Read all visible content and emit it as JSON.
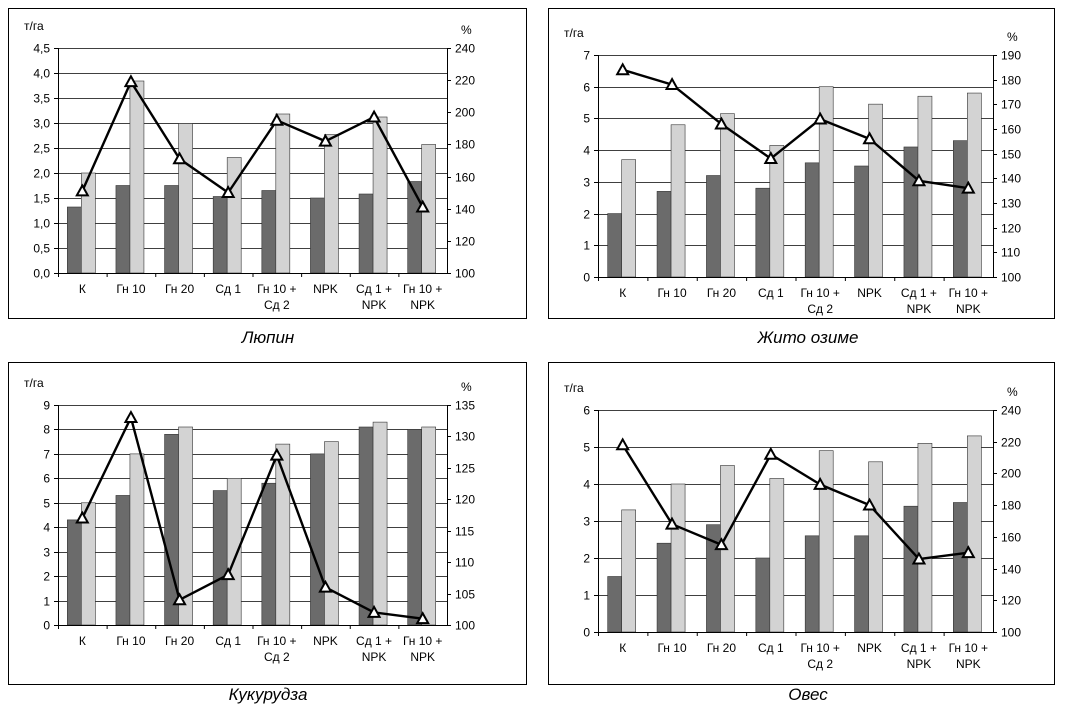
{
  "colors": {
    "bar_dark": "#6b6b6b",
    "bar_light": "#d3d3d3",
    "line": "#000000",
    "marker_fill": "#ffffff",
    "frame": "#000000",
    "grid": "#000000"
  },
  "chart_data": [
    {
      "type": "bar",
      "caption": "Люпин",
      "y_unit_left": "т/га",
      "y_unit_right": "%",
      "categories": [
        [
          "К"
        ],
        [
          "Гн 10"
        ],
        [
          "Гн 20"
        ],
        [
          "Сд 1"
        ],
        [
          "Гн 10 +",
          "Сд 2"
        ],
        [
          "NPK"
        ],
        [
          "Сд 1 +",
          "NPK"
        ],
        [
          "Гн 10 +",
          "NPK"
        ]
      ],
      "ylim": [
        0,
        4.5
      ],
      "ystep": 0.5,
      "ydecimals": 1,
      "y2lim": [
        100,
        240
      ],
      "y2step": 20,
      "grid": true,
      "legend": "none",
      "series": [
        {
          "kind": "bar",
          "axis": "left",
          "values": [
            1.32,
            1.75,
            1.75,
            1.53,
            1.65,
            1.5,
            1.58,
            1.83
          ]
        },
        {
          "kind": "bar",
          "axis": "left",
          "values": [
            2.0,
            3.84,
            2.99,
            2.31,
            3.18,
            2.77,
            3.12,
            2.57
          ]
        },
        {
          "kind": "line",
          "axis": "right",
          "values": [
            151,
            219,
            171,
            150,
            195,
            182,
            197,
            141
          ]
        }
      ]
    },
    {
      "type": "bar",
      "caption": "Жито озиме",
      "y_unit_left": "т/га",
      "y_unit_right": "%",
      "categories": [
        [
          "К"
        ],
        [
          "Гн 10"
        ],
        [
          "Гн 20"
        ],
        [
          "Сд 1"
        ],
        [
          "Гн 10 +",
          "Сд 2"
        ],
        [
          "NPK"
        ],
        [
          "Сд 1 +",
          "NPK"
        ],
        [
          "Гн 10 +",
          "NPK"
        ]
      ],
      "ylim": [
        0,
        7
      ],
      "ystep": 1,
      "ydecimals": 0,
      "y2lim": [
        100,
        190
      ],
      "y2step": 10,
      "grid": true,
      "legend": "none",
      "series": [
        {
          "kind": "bar",
          "axis": "left",
          "values": [
            2.0,
            2.7,
            3.2,
            2.8,
            3.6,
            3.5,
            4.1,
            4.3
          ]
        },
        {
          "kind": "bar",
          "axis": "left",
          "values": [
            3.7,
            4.8,
            5.15,
            4.15,
            6.0,
            5.45,
            5.7,
            5.8
          ]
        },
        {
          "kind": "line",
          "axis": "right",
          "values": [
            184,
            178,
            162,
            148,
            164,
            156,
            139,
            136
          ]
        }
      ]
    },
    {
      "type": "bar",
      "caption": "Кукурудза",
      "y_unit_left": "т/га",
      "y_unit_right": "%",
      "categories": [
        [
          "К"
        ],
        [
          "Гн 10"
        ],
        [
          "Гн 20"
        ],
        [
          "Сд 1"
        ],
        [
          "Гн 10 +",
          "Сд 2"
        ],
        [
          "NPK"
        ],
        [
          "Сд 1 +",
          "NPK"
        ],
        [
          "Гн 10 +",
          "NPK"
        ]
      ],
      "ylim": [
        0,
        9
      ],
      "ystep": 1,
      "ydecimals": 0,
      "y2lim": [
        100,
        135
      ],
      "y2step": 5,
      "grid": true,
      "legend": "none",
      "series": [
        {
          "kind": "bar",
          "axis": "left",
          "values": [
            4.3,
            5.3,
            7.8,
            5.5,
            5.8,
            7.0,
            8.1,
            8.0
          ]
        },
        {
          "kind": "bar",
          "axis": "left",
          "values": [
            5.0,
            7.0,
            8.1,
            6.0,
            7.4,
            7.5,
            8.3,
            8.1
          ]
        },
        {
          "kind": "line",
          "axis": "right",
          "values": [
            117,
            133,
            104,
            108,
            127,
            106,
            102,
            101
          ]
        }
      ]
    },
    {
      "type": "bar",
      "caption": "Овес",
      "y_unit_left": "т/га",
      "y_unit_right": "%",
      "categories": [
        [
          "К"
        ],
        [
          "Гн 10"
        ],
        [
          "Гн 20"
        ],
        [
          "Сд 1"
        ],
        [
          "Гн 10 +",
          "Сд 2"
        ],
        [
          "NPK"
        ],
        [
          "Сд 1 +",
          "NPK"
        ],
        [
          "Гн 10 +",
          "NPK"
        ]
      ],
      "ylim": [
        0,
        6
      ],
      "ystep": 1,
      "ydecimals": 0,
      "y2lim": [
        100,
        240
      ],
      "y2step": 20,
      "grid": true,
      "legend": "none",
      "series": [
        {
          "kind": "bar",
          "axis": "left",
          "values": [
            1.5,
            2.4,
            2.9,
            2.0,
            2.6,
            2.6,
            3.4,
            3.5
          ]
        },
        {
          "kind": "bar",
          "axis": "left",
          "values": [
            3.3,
            4.0,
            4.5,
            4.15,
            4.9,
            4.6,
            5.1,
            5.3
          ]
        },
        {
          "kind": "line",
          "axis": "right",
          "values": [
            218,
            168,
            155,
            212,
            193,
            180,
            146,
            150
          ]
        }
      ]
    }
  ]
}
